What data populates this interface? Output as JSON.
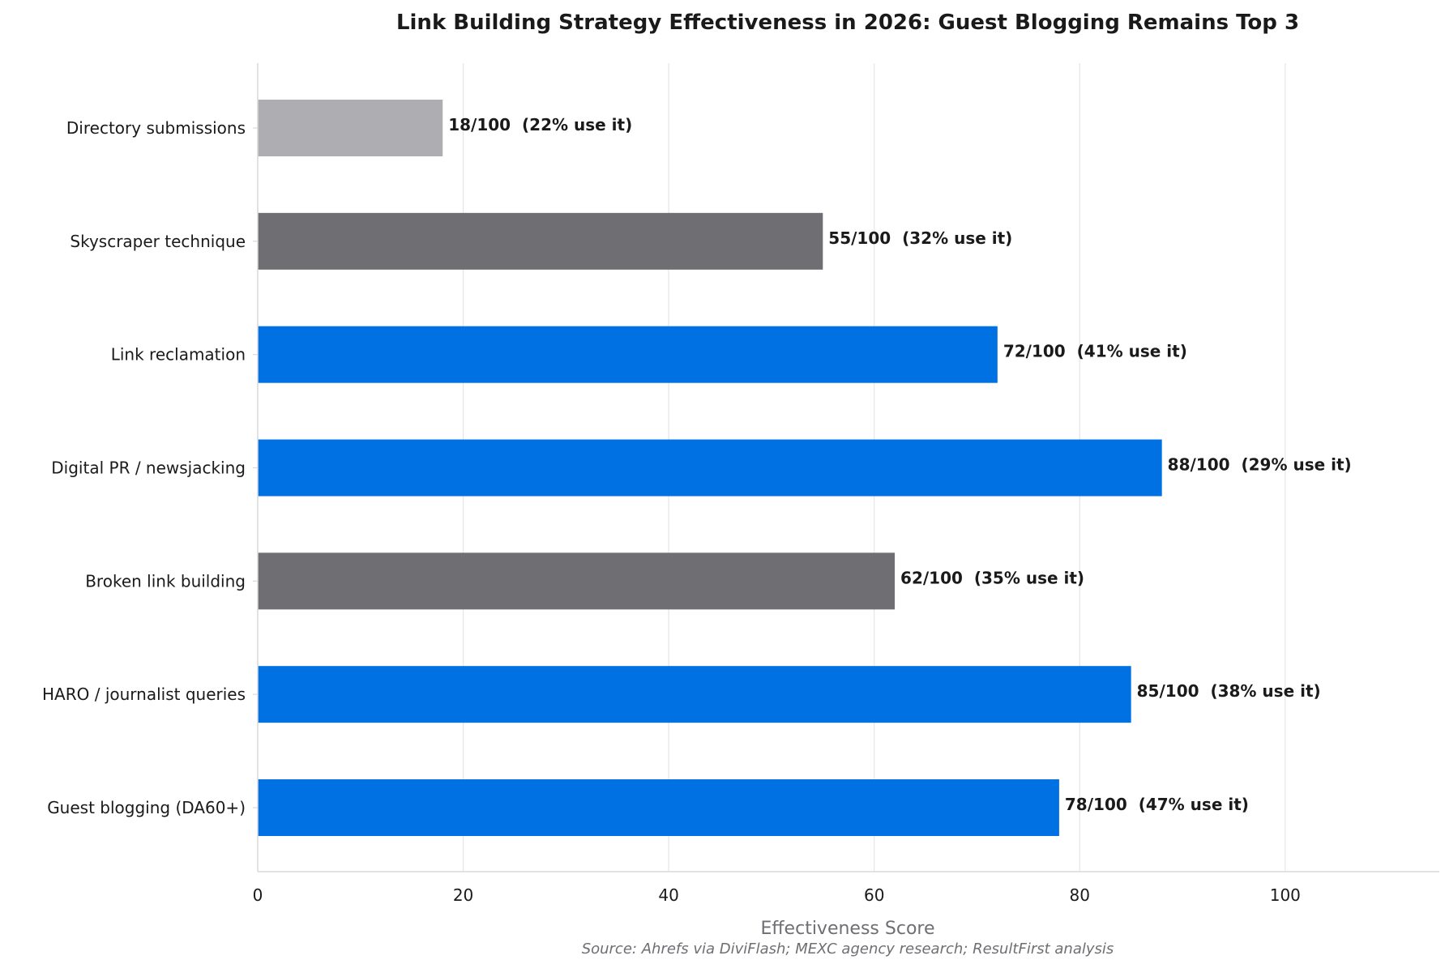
{
  "chart_data": {
    "type": "bar",
    "orientation": "horizontal",
    "title": "Link Building Strategy Effectiveness in 2026: Guest Blogging Remains Top 3",
    "xlabel": "Effectiveness Score",
    "ylabel": "",
    "source": "Source: Ahrefs via DiviFlash; MEXC agency research; ResultFirst analysis",
    "xlim": [
      0,
      115
    ],
    "xticks": [
      0,
      20,
      40,
      60,
      80,
      100
    ],
    "grid": true,
    "legend": "none",
    "categories": [
      "Directory submissions",
      "Skyscraper technique",
      "Link reclamation",
      "Digital PR / newsjacking",
      "Broken link building",
      "HARO / journalist queries",
      "Guest blogging (DA60+)"
    ],
    "values": [
      18,
      55,
      72,
      88,
      62,
      85,
      78
    ],
    "usage_percent": [
      22,
      32,
      41,
      29,
      35,
      38,
      47
    ],
    "data_labels": [
      "18/100  (22% use it)",
      "55/100  (32% use it)",
      "72/100  (41% use it)",
      "88/100  (29% use it)",
      "62/100  (35% use it)",
      "85/100  (38% use it)",
      "78/100  (47% use it)"
    ],
    "bar_colors": [
      "#aeaeb2",
      "#6e6e73",
      "#0071e3",
      "#0071e3",
      "#6e6e73",
      "#0071e3",
      "#0071e3"
    ]
  }
}
